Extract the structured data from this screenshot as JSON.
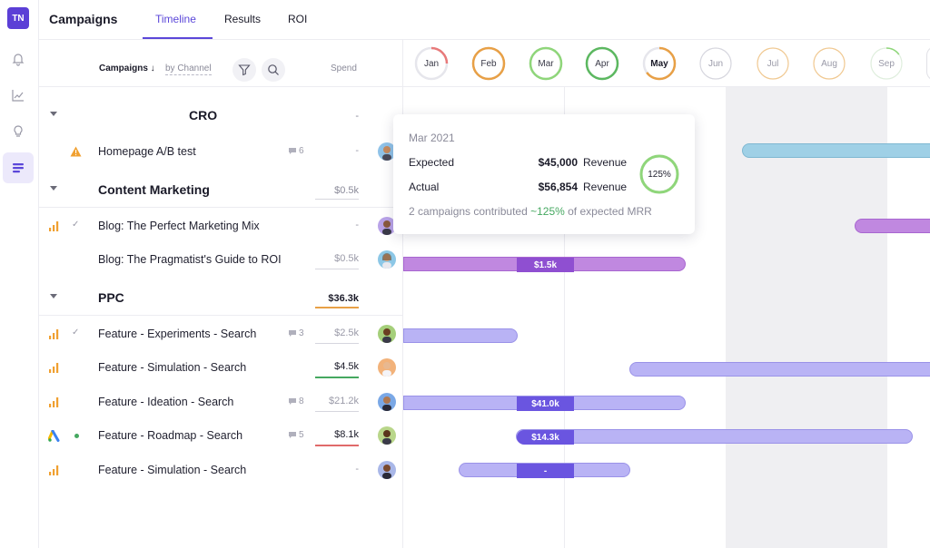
{
  "app": {
    "logo": "TN",
    "title": "Campaigns"
  },
  "tabs": [
    {
      "label": "Timeline",
      "active": true
    },
    {
      "label": "Results",
      "active": false
    },
    {
      "label": "ROI",
      "active": false
    }
  ],
  "rail": {
    "icons": [
      "bell-icon",
      "chart-icon",
      "lightbulb-icon",
      "list-icon"
    ],
    "active": "list-icon"
  },
  "list_header": {
    "campaigns_label": "Campaigns ↓",
    "group_by": "by Channel",
    "spend_label": "Spend"
  },
  "groups": [
    {
      "name": "CRO",
      "spend": "-",
      "spend_dark": false,
      "items": [
        {
          "name": "Homepage A/B test",
          "icon": "warning-icon",
          "comments": "6",
          "spend": "-",
          "avatar_color": "#8fc2e8"
        }
      ]
    },
    {
      "name": "Content Marketing",
      "spend": "$0.5k",
      "spend_dark": false,
      "items": [
        {
          "name": "Blog: The Perfect Marketing Mix",
          "icon": "bar-chart-icon",
          "status": "check",
          "spend": "-",
          "avatar_color": "#b9a3e8"
        },
        {
          "name": "Blog: The Pragmatist's Guide to ROI",
          "icon": "",
          "spend": "$0.5k",
          "avatar_color": "#8cc7e6"
        }
      ]
    },
    {
      "name": "PPC",
      "spend": "$36.3k",
      "spend_dark": true,
      "underline": "#e8a046",
      "items": [
        {
          "name": "Feature - Experiments - Search",
          "icon": "bar-chart-icon",
          "status": "check",
          "comments": "3",
          "spend": "$2.5k",
          "avatar_color": "#a5cf7a"
        },
        {
          "name": "Feature - Simulation - Search",
          "icon": "bar-chart-icon",
          "spend": "$4.5k",
          "spend_dark": true,
          "underline": "#45a860",
          "avatar_color": "#f2b27a"
        },
        {
          "name": "Feature - Ideation - Search",
          "icon": "bar-chart-icon",
          "comments": "8",
          "spend": "$21.2k",
          "avatar_color": "#7aa8e6"
        },
        {
          "name": "Feature - Roadmap - Search",
          "icon": "google-ads-icon",
          "status": "dot",
          "comments": "5",
          "spend": "$8.1k",
          "spend_dark": true,
          "underline": "#e06a6a",
          "avatar_color": "#b9d68a"
        },
        {
          "name": "Feature - Simulation - Search",
          "icon": "bar-chart-icon",
          "spend": "-",
          "avatar_color": "#a9b7e8"
        }
      ]
    }
  ],
  "months": [
    {
      "label": "Jan",
      "progress": 0.25,
      "color": "#e87a7a"
    },
    {
      "label": "Feb",
      "progress": 1.0,
      "color": "#e8a046"
    },
    {
      "label": "Mar",
      "progress": 1.0,
      "color": "#8fd67a"
    },
    {
      "label": "Apr",
      "progress": 1.0,
      "color": "#5cb860"
    },
    {
      "label": "May",
      "progress": 0.65,
      "color": "#e8a046",
      "bold": true
    },
    {
      "label": "Jun",
      "progress": 0,
      "color": "#d6d6de",
      "faint": true
    },
    {
      "label": "Jul",
      "progress": 0,
      "color": "#f0c890",
      "faint": true
    },
    {
      "label": "Aug",
      "progress": 0,
      "color": "#f0c890",
      "faint": true
    },
    {
      "label": "Sep",
      "progress": 0.15,
      "color": "#8fd67a",
      "faint": true
    }
  ],
  "bar_labels": [
    "$1.5k",
    "$41.0k",
    "$14.3k",
    "-"
  ],
  "tooltip": {
    "title": "Mar 2021",
    "expected_label": "Expected",
    "expected_value": "$45,000",
    "actual_label": "Actual",
    "actual_value": "$56,854",
    "unit": "Revenue",
    "ring_label": "125%",
    "ring_progress": 1.0,
    "note_prefix": "2 campaigns contributed ",
    "note_pct": "~125%",
    "note_suffix": " of expected MRR"
  },
  "colors": {
    "accent": "#5b47d9",
    "bar_purple": "#b9b3f5",
    "bar_purple_dark": "#6a55e0",
    "bar_magenta": "#c088e0",
    "bar_magenta_dark": "#8f4fd1",
    "bar_blue": "#9fd0e6"
  }
}
